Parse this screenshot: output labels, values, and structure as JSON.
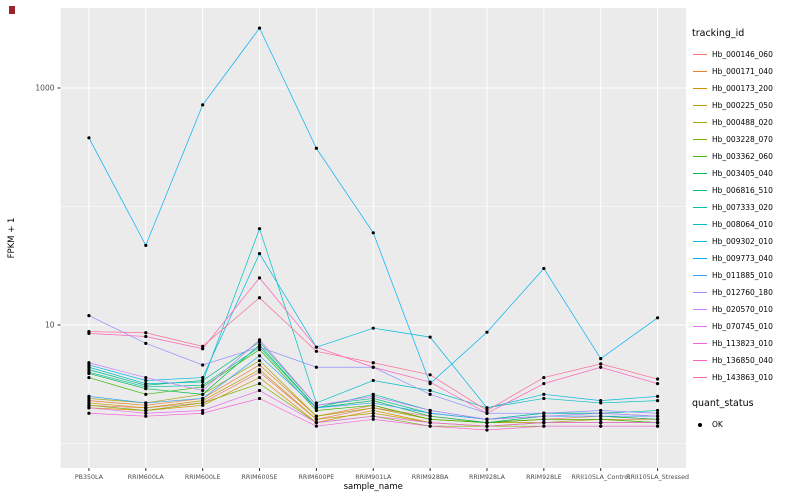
{
  "figure": {
    "background": "#FFFFFF",
    "panel_background": "#EBEBEB",
    "grid_color": "#FFFFFF",
    "tick_label_color": "#4D4D4D"
  },
  "legend": {
    "tracking_title": "tracking_id",
    "quant_title": "quant_status",
    "quant_value": "OK",
    "point_color": "#000000"
  },
  "chart_data": {
    "type": "line",
    "title": "",
    "xlabel": "sample_name",
    "ylabel": "FPKM + 1",
    "y_scale": "log10",
    "ylim": [
      0.6,
      4500
    ],
    "grid": true,
    "legend_position": "right",
    "y_ticks": [
      {
        "value": 10,
        "label": "10"
      },
      {
        "value": 1000,
        "label": "1000"
      }
    ],
    "y_minor_gridlines": [
      1,
      100
    ],
    "point_marker": {
      "shape": "circle",
      "color": "#000000",
      "label": "OK"
    },
    "categories": [
      "PB350LA",
      "RRIM600LA",
      "RRIM600LE",
      "RRIM600SE",
      "RRIM600PE",
      "RRIM901LA",
      "RRIM928BA",
      "RRIM928LA",
      "RRIM928LE",
      "RRII105LA_Control",
      "RRII105LA_Stressed"
    ],
    "series": [
      {
        "name": "Hb_000146_060",
        "color": "#F8766D",
        "values": [
          2.1,
          2.0,
          2.2,
          4.0,
          1.6,
          2.0,
          1.7,
          1.5,
          1.6,
          1.7,
          1.6
        ]
      },
      {
        "name": "Hb_000171_040",
        "color": "#EA8331",
        "values": [
          2.3,
          2.1,
          2.4,
          4.6,
          1.7,
          2.1,
          1.6,
          1.5,
          1.6,
          1.6,
          1.6
        ]
      },
      {
        "name": "Hb_000173_200",
        "color": "#D89000",
        "values": [
          2.0,
          1.9,
          2.1,
          3.6,
          1.5,
          1.9,
          1.5,
          1.4,
          1.5,
          1.5,
          1.5
        ]
      },
      {
        "name": "Hb_000225_050",
        "color": "#C09B00",
        "values": [
          2.2,
          2.0,
          2.3,
          4.2,
          1.6,
          1.8,
          1.5,
          1.4,
          1.5,
          1.5,
          1.5
        ]
      },
      {
        "name": "Hb_000488_020",
        "color": "#A3A500",
        "values": [
          2.4,
          2.2,
          2.6,
          5.0,
          1.7,
          2.0,
          1.6,
          1.5,
          1.5,
          1.6,
          1.5
        ]
      },
      {
        "name": "Hb_003228_070",
        "color": "#7CAE00",
        "values": [
          2.1,
          1.9,
          2.2,
          3.2,
          1.5,
          1.7,
          1.4,
          1.4,
          1.4,
          1.4,
          1.4
        ]
      },
      {
        "name": "Hb_003362_060",
        "color": "#39B600",
        "values": [
          3.6,
          2.6,
          3.0,
          6.2,
          1.9,
          2.1,
          1.6,
          1.5,
          1.6,
          1.6,
          1.5
        ]
      },
      {
        "name": "Hb_003405_040",
        "color": "#00BB4E",
        "values": [
          3.9,
          2.9,
          2.6,
          6.8,
          2.0,
          2.3,
          1.7,
          1.5,
          1.7,
          1.7,
          1.6
        ]
      },
      {
        "name": "Hb_006816_510",
        "color": "#00BF7D",
        "values": [
          4.2,
          3.1,
          3.4,
          7.2,
          2.1,
          2.4,
          1.8,
          1.6,
          1.8,
          1.8,
          1.7
        ]
      },
      {
        "name": "Hb_007333_020",
        "color": "#00C1A3",
        "values": [
          4.0,
          3.0,
          3.1,
          6.5,
          2.0,
          2.6,
          1.9,
          1.6,
          1.8,
          1.8,
          1.9
        ]
      },
      {
        "name": "Hb_008064_010",
        "color": "#00BFC4",
        "values": [
          4.4,
          3.2,
          3.3,
          65,
          2.2,
          3.4,
          2.8,
          2.0,
          2.4,
          2.2,
          2.3
        ]
      },
      {
        "name": "Hb_009302_010",
        "color": "#00BAE0",
        "values": [
          4.6,
          3.4,
          3.6,
          40,
          6.5,
          9.4,
          7.9,
          2.0,
          2.6,
          2.3,
          2.5
        ]
      },
      {
        "name": "Hb_009773_040",
        "color": "#00B0F6",
        "values": [
          380,
          47,
          720,
          3200,
          310,
          60,
          3.2,
          8.7,
          30,
          5.2,
          11.5
        ]
      },
      {
        "name": "Hb_011885_010",
        "color": "#35A2FF",
        "values": [
          2.5,
          2.2,
          2.4,
          5.5,
          2.0,
          2.2,
          1.8,
          1.6,
          1.7,
          1.7,
          1.7
        ]
      },
      {
        "name": "Hb_012760_180",
        "color": "#9590FF",
        "values": [
          12,
          7.0,
          4.6,
          6.5,
          4.4,
          4.4,
          2.6,
          1.8,
          1.8,
          1.9,
          1.8
        ]
      },
      {
        "name": "Hb_020570_010",
        "color": "#C77CFF",
        "values": [
          4.8,
          3.6,
          2.8,
          7.5,
          2.1,
          2.5,
          1.9,
          1.6,
          1.7,
          1.8,
          1.7
        ]
      },
      {
        "name": "Hb_070745_010",
        "color": "#E76BF3",
        "values": [
          2.0,
          1.8,
          1.9,
          2.8,
          1.5,
          1.7,
          1.5,
          1.4,
          1.5,
          1.5,
          1.5
        ]
      },
      {
        "name": "Hb_113823_010",
        "color": "#FA62DB",
        "values": [
          1.8,
          1.7,
          1.8,
          2.4,
          1.4,
          1.6,
          1.4,
          1.3,
          1.4,
          1.4,
          1.4
        ]
      },
      {
        "name": "Hb_136850_040",
        "color": "#FF62BC",
        "values": [
          8.5,
          8.0,
          6.3,
          25,
          6.5,
          4.4,
          3.3,
          1.8,
          3.2,
          4.4,
          3.2
        ]
      },
      {
        "name": "Hb_143863_010",
        "color": "#FF6A98",
        "values": [
          8.8,
          8.6,
          6.6,
          17,
          6.0,
          4.8,
          3.8,
          1.9,
          3.6,
          4.7,
          3.5
        ]
      }
    ]
  }
}
